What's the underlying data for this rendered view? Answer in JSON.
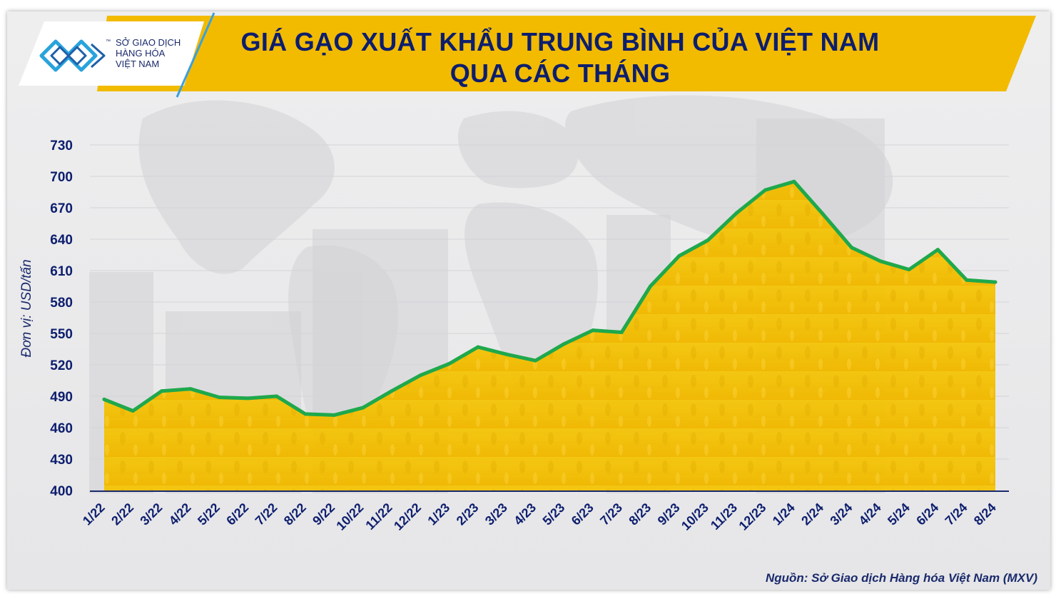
{
  "header": {
    "title_line_1": "GIÁ GẠO XUẤT KHẨU TRUNG BÌNH CỦA VIỆT NAM",
    "title_line_2": "QUA CÁC THÁNG",
    "logo_text": [
      "SỞ GIAO DỊCH",
      "HÀNG HÓA",
      "VIỆT NAM"
    ],
    "logo_mark": "™",
    "banner_color": "#f2bb00",
    "title_color": "#0d1e6e"
  },
  "footer": {
    "source": "Nguồn: Sở Giao dịch Hàng hóa Việt Nam (MXV)"
  },
  "icons": {
    "logo": "mxv-logo-icon"
  },
  "chart_data": {
    "type": "area",
    "title": "GIÁ GẠO XUẤT KHẨU TRUNG BÌNH CỦA VIỆT NAM QUA CÁC THÁNG",
    "xlabel": "",
    "ylabel": "Đơn vị: USD/tấn",
    "ylim": [
      400,
      730
    ],
    "yticks": [
      400,
      430,
      460,
      490,
      520,
      550,
      580,
      610,
      640,
      670,
      700,
      730
    ],
    "grid": true,
    "legend": "none",
    "categories": [
      "1/22",
      "2/22",
      "3/22",
      "4/22",
      "5/22",
      "6/22",
      "7/22",
      "8/22",
      "9/22",
      "10/22",
      "11/22",
      "12/22",
      "1/23",
      "2/23",
      "3/23",
      "4/23",
      "5/23",
      "6/23",
      "7/23",
      "8/23",
      "9/23",
      "10/23",
      "11/23",
      "12/23",
      "1/24",
      "2/24",
      "3/24",
      "4/24",
      "5/24",
      "6/24",
      "7/24",
      "8/24"
    ],
    "series": [
      {
        "values": [
          487,
          476,
          495,
          497,
          489,
          488,
          490,
          473,
          472,
          479,
          495,
          510,
          521,
          537,
          530,
          524,
          540,
          553,
          551,
          595,
          624,
          639,
          665,
          687,
          695,
          664,
          632,
          619,
          611,
          630,
          601,
          599
        ],
        "line_color": "#1fa84c",
        "fill_color": "#f2c200"
      }
    ],
    "axis_color": "#1a2a6c",
    "tick_label_color": "#0d1e6e"
  }
}
